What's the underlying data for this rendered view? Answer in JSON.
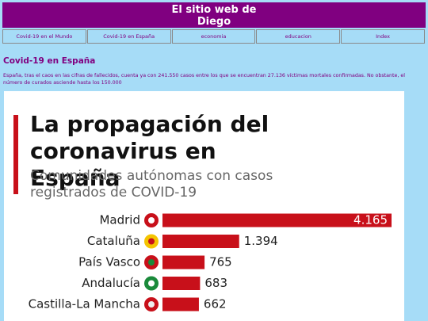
{
  "header": {
    "title": "El sitio web de Diego"
  },
  "nav": [
    "Covid-19 en el Mundo",
    "Covid-19 en España",
    "economia",
    "educacion",
    "Index"
  ],
  "section": {
    "heading": "Covid-19 en España",
    "text": "España, tras el caos en las cifras de fallecidos, cuenta ya con 241.550 casos entre los que se encuentran 27.136 víctimas mortales confirmadas. No obstante, el número de curados asciende hasta los 150.000"
  },
  "infographic": {
    "title": "La propagación del coronavirus en España",
    "subtitle": "Comunidades autónomas con casos registrados de COVID-19",
    "color": "#c8101a",
    "categories": [
      "Madrid",
      "Cataluña",
      "País Vasco",
      "Andalucía",
      "Castilla-La Mancha"
    ],
    "values": [
      4165,
      1394,
      765,
      683,
      662
    ],
    "value_labels": [
      "4.165",
      "1.394",
      "765",
      "683",
      "662"
    ]
  }
}
